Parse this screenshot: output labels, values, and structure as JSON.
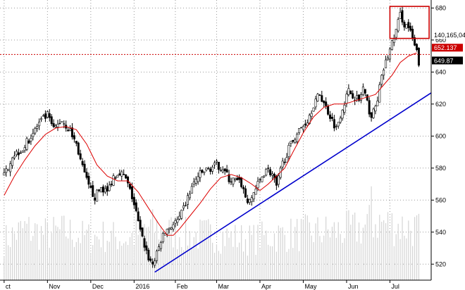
{
  "chart_data": {
    "type": "candlestick",
    "title": "",
    "xlabel": "",
    "ylabel": "",
    "ylim": [
      510,
      685
    ],
    "y_ticks": [
      520,
      540,
      560,
      580,
      600,
      620,
      640,
      660,
      680
    ],
    "x_tick_labels": [
      "ct",
      "Nov",
      "Dec",
      "2016",
      "Feb",
      "Mar",
      "Apr",
      "May",
      "Jun",
      "Jul"
    ],
    "x_tick_positions": [
      0,
      21,
      42,
      63,
      83,
      103,
      124,
      145,
      166,
      187
    ],
    "x_range": [
      -2,
      207
    ],
    "grid": true,
    "price_path": [
      [
        0,
        575
      ],
      [
        4,
        588
      ],
      [
        9,
        592
      ],
      [
        13,
        600
      ],
      [
        17,
        608
      ],
      [
        21,
        613
      ],
      [
        24,
        604
      ],
      [
        28,
        610
      ],
      [
        32,
        603
      ],
      [
        35,
        595
      ],
      [
        38,
        580
      ],
      [
        41,
        568
      ],
      [
        44,
        562
      ],
      [
        47,
        568
      ],
      [
        50,
        565
      ],
      [
        53,
        575
      ],
      [
        56,
        578
      ],
      [
        59,
        573
      ],
      [
        62,
        562
      ],
      [
        64,
        552
      ],
      [
        66,
        540
      ],
      [
        68,
        532
      ],
      [
        70,
        524
      ],
      [
        72,
        520
      ],
      [
        74,
        526
      ],
      [
        76,
        535
      ],
      [
        79,
        542
      ],
      [
        82,
        545
      ],
      [
        85,
        548
      ],
      [
        88,
        558
      ],
      [
        91,
        568
      ],
      [
        94,
        575
      ],
      [
        97,
        578
      ],
      [
        100,
        580
      ],
      [
        103,
        582
      ],
      [
        106,
        580
      ],
      [
        109,
        573
      ],
      [
        112,
        572
      ],
      [
        115,
        570
      ],
      [
        117,
        562
      ],
      [
        119,
        558
      ],
      [
        121,
        565
      ],
      [
        124,
        572
      ],
      [
        127,
        580
      ],
      [
        130,
        576
      ],
      [
        132,
        568
      ],
      [
        135,
        583
      ],
      [
        138,
        592
      ],
      [
        141,
        600
      ],
      [
        144,
        605
      ],
      [
        147,
        610
      ],
      [
        150,
        620
      ],
      [
        153,
        626
      ],
      [
        156,
        618
      ],
      [
        159,
        610
      ],
      [
        161,
        605
      ],
      [
        164,
        618
      ],
      [
        167,
        628
      ],
      [
        170,
        625
      ],
      [
        172,
        622
      ],
      [
        174,
        630
      ],
      [
        176,
        620
      ],
      [
        178,
        612
      ],
      [
        180,
        618
      ],
      [
        182,
        630
      ],
      [
        184,
        642
      ],
      [
        187,
        654
      ],
      [
        190,
        666
      ],
      [
        192,
        676
      ],
      [
        194,
        670
      ],
      [
        196,
        668
      ],
      [
        198,
        660
      ],
      [
        200,
        652
      ],
      [
        201,
        646
      ]
    ],
    "moving_average": [
      [
        0,
        563
      ],
      [
        5,
        575
      ],
      [
        10,
        585
      ],
      [
        15,
        594
      ],
      [
        20,
        601
      ],
      [
        25,
        605
      ],
      [
        30,
        606
      ],
      [
        35,
        604
      ],
      [
        40,
        595
      ],
      [
        45,
        582
      ],
      [
        50,
        575
      ],
      [
        55,
        572
      ],
      [
        60,
        572
      ],
      [
        65,
        565
      ],
      [
        70,
        555
      ],
      [
        75,
        545
      ],
      [
        79,
        538
      ],
      [
        82,
        538
      ],
      [
        85,
        542
      ],
      [
        90,
        550
      ],
      [
        95,
        558
      ],
      [
        100,
        567
      ],
      [
        105,
        574
      ],
      [
        110,
        576
      ],
      [
        115,
        574
      ],
      [
        120,
        570
      ],
      [
        124,
        566
      ],
      [
        128,
        570
      ],
      [
        132,
        575
      ],
      [
        136,
        580
      ],
      [
        140,
        590
      ],
      [
        145,
        602
      ],
      [
        150,
        612
      ],
      [
        155,
        618
      ],
      [
        160,
        620
      ],
      [
        165,
        620
      ],
      [
        170,
        622
      ],
      [
        175,
        624
      ],
      [
        180,
        626
      ],
      [
        184,
        632
      ],
      [
        188,
        638
      ],
      [
        192,
        646
      ],
      [
        196,
        650
      ],
      [
        200,
        652
      ]
    ],
    "volume_range": [
      0,
      100
    ],
    "volume_base": [
      [
        0,
        45
      ],
      [
        10,
        58
      ],
      [
        20,
        52
      ],
      [
        30,
        55
      ],
      [
        40,
        48
      ],
      [
        50,
        50
      ],
      [
        60,
        46
      ],
      [
        70,
        60
      ],
      [
        80,
        55
      ],
      [
        90,
        50
      ],
      [
        100,
        52
      ],
      [
        110,
        48
      ],
      [
        120,
        46
      ],
      [
        130,
        50
      ],
      [
        140,
        52
      ],
      [
        150,
        54
      ],
      [
        160,
        55
      ],
      [
        170,
        57
      ],
      [
        175,
        60
      ],
      [
        180,
        66
      ],
      [
        190,
        62
      ],
      [
        200,
        58
      ],
      [
        201,
        56
      ]
    ],
    "volume_spikes": [
      {
        "x": 178,
        "v": 98
      }
    ],
    "annotations": {
      "trendline": {
        "from": [
          73,
          515
        ],
        "to": [
          207,
          627
        ],
        "color": "#0000cc"
      },
      "resistance_line": {
        "y": 651,
        "color": "#cc0000",
        "style": "dotted"
      },
      "highlight_box": {
        "x0": 187,
        "x1": 206,
        "y0": 661,
        "y1": 681,
        "color": "#cc0000"
      }
    },
    "price_labels": [
      {
        "text": "140,165,04",
        "y": 663,
        "bg": "#ffffff",
        "fg": "#000000"
      },
      {
        "text": "652.137",
        "y": 655,
        "bg": "#cc0000",
        "fg": "#ffffff"
      },
      {
        "text": "649.87",
        "y": 647,
        "bg": "#000000",
        "fg": "#ffffff"
      }
    ],
    "colors": {
      "candle_up": "#ffffff",
      "candle_down": "#000000",
      "candle_outline": "#000000",
      "moving_average": "#dd0000",
      "volume": "#d4d4d4",
      "grid": "#9a9a9a",
      "axis": "#000000"
    }
  }
}
